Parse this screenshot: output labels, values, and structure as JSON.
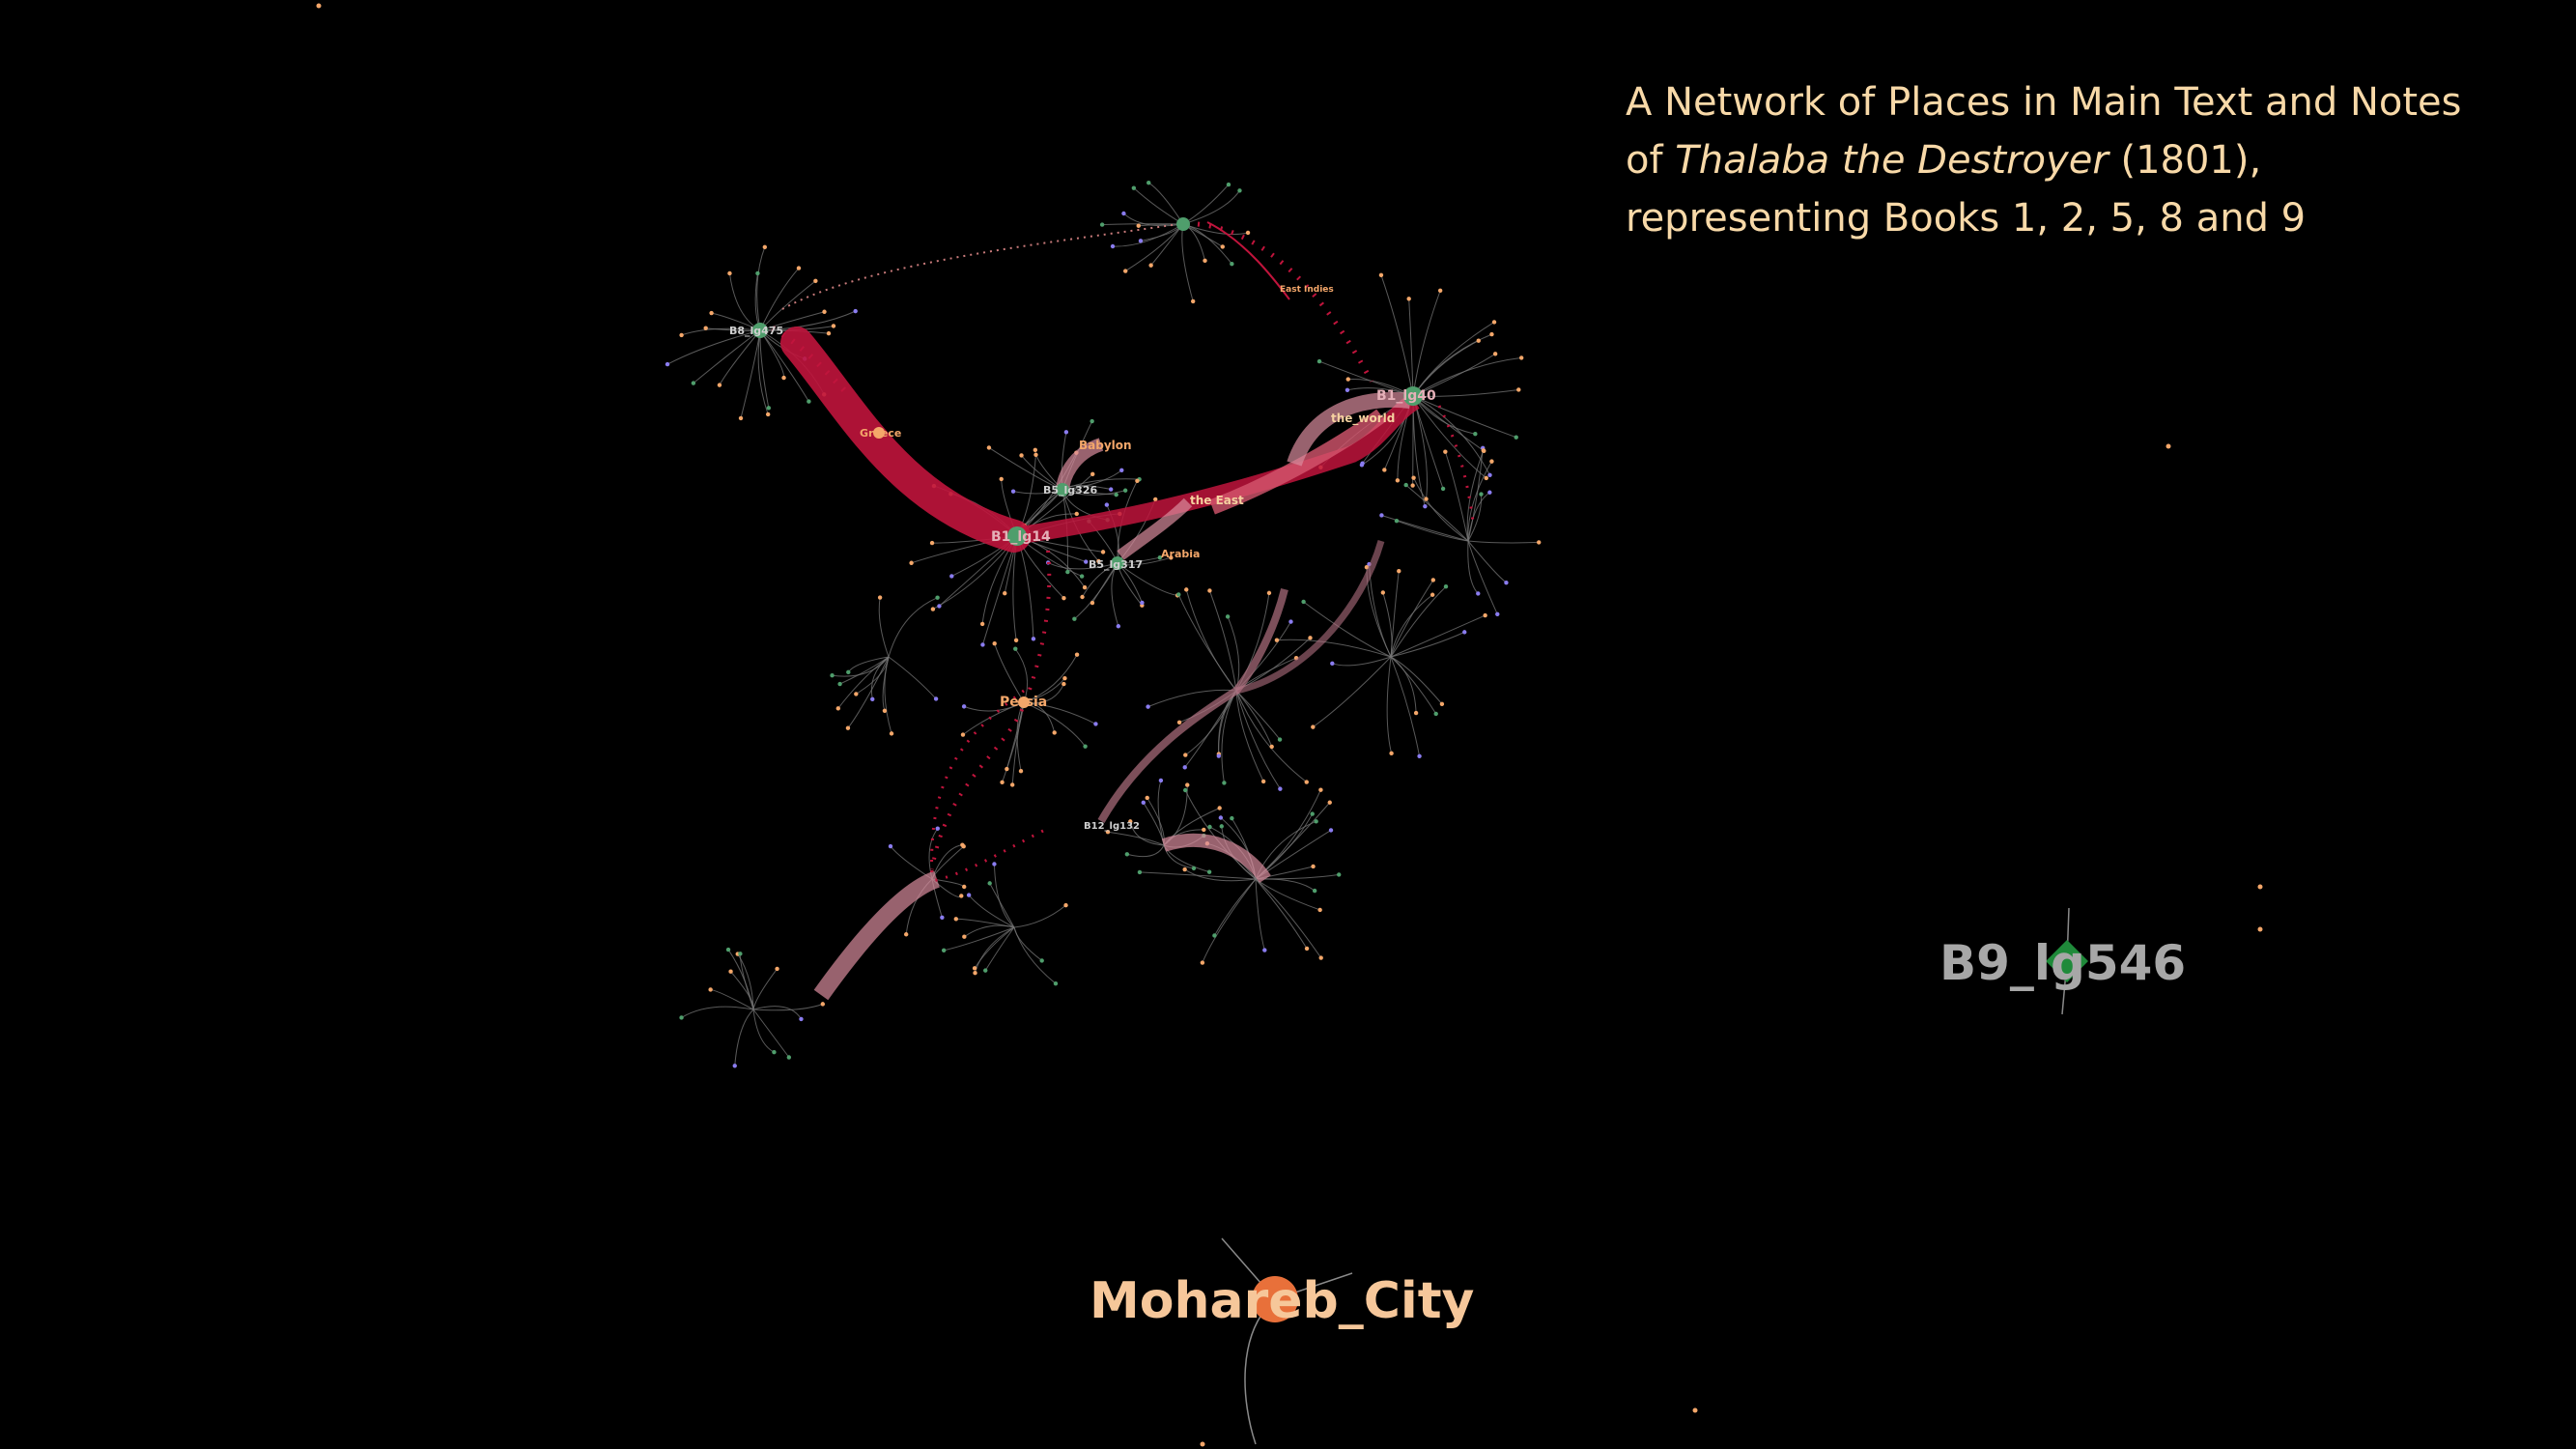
{
  "title": {
    "line1": "A Network of Places in Main Text and Notes",
    "line2_pre": "of ",
    "line2_italic": "Thalaba the Destroyer",
    "line2_post": " (1801),",
    "line3": "representing Books 1, 2, 5, 8 and 9"
  },
  "big_labels": {
    "mohareb_city": "Mohareb_City",
    "b9_lg546": "B9_lg546"
  },
  "node_labels": {
    "greece": "Greece",
    "babylon": "Babylon",
    "the_east": "the East",
    "the_world": "the_world",
    "arabia": "Arabia",
    "persia": "Persia",
    "b1_lg14": "B1_lg14",
    "b1_lg40": "B1_lg40",
    "b8_lg475": "B8_lg475",
    "b5_lg326": "B5_lg326",
    "b5_lg317": "B5_lg317",
    "b12_lg132": "B12_lg132",
    "east_indies": "East Indies"
  },
  "colors": {
    "background": "#000000",
    "title_text": "#f8d9a8",
    "strong_edge": "#c0143c",
    "soft_edge": "#d98c9c",
    "grey_edge": "#8a8a8a",
    "place_node": "#f4a76a",
    "line_node": "#4f9e6c",
    "note_node": "#8a7cf0",
    "mohareb_node": "#e8703a",
    "b9_node": "#1f8a3a"
  }
}
